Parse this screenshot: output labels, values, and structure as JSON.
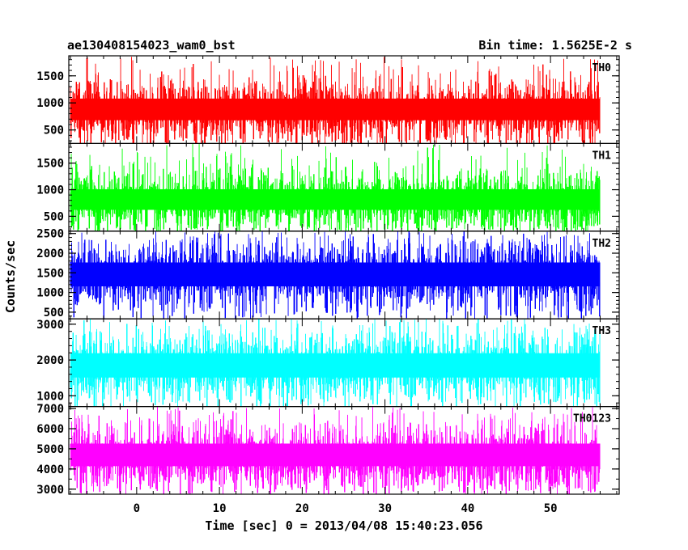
{
  "chart_data": {
    "type": "line",
    "title_left": "ae130408154023_wam0_bst",
    "title_right": "Bin time: 1.5625E-2 s",
    "xlabel": "Time [sec] 0 = 2013/04/08 15:40:23.056",
    "ylabel": "Counts/sec",
    "xlim": [
      -8.2,
      58.3
    ],
    "xticks": [
      0,
      10,
      20,
      30,
      40,
      50
    ],
    "x_minor_step": 2,
    "data_x_range": [
      -8.0,
      56.0
    ],
    "grid": false,
    "panels": [
      {
        "name": "TH0",
        "color": "#ff0000",
        "ylim": [
          250,
          1870
        ],
        "yticks": [
          500,
          1000,
          1500
        ],
        "y_minor_step": 100,
        "mean": 850,
        "typical_low": 380,
        "typical_high": 1380,
        "min": 200,
        "max": 1870
      },
      {
        "name": "TH1",
        "color": "#00ff00",
        "ylim": [
          220,
          1870
        ],
        "yticks": [
          500,
          1000,
          1500
        ],
        "y_minor_step": 100,
        "mean": 790,
        "typical_low": 330,
        "typical_high": 1300,
        "min": 200,
        "max": 1870
      },
      {
        "name": "TH2",
        "color": "#0000ff",
        "ylim": [
          330,
          2560
        ],
        "yticks": [
          500,
          1000,
          1500,
          2000,
          2500
        ],
        "y_minor_step": 100,
        "mean": 1450,
        "typical_low": 700,
        "typical_high": 2220,
        "min": 300,
        "max": 2560
      },
      {
        "name": "TH3",
        "color": "#00ffff",
        "ylim": [
          700,
          3150
        ],
        "yticks": [
          1000,
          2000,
          3000
        ],
        "y_minor_step": 200,
        "mean": 1800,
        "typical_low": 1000,
        "typical_high": 2700,
        "min": 700,
        "max": 3150
      },
      {
        "name": "TH0123",
        "color": "#ff00ff",
        "ylim": [
          2750,
          7100
        ],
        "yticks": [
          3000,
          4000,
          5000,
          6000,
          7000
        ],
        "y_minor_step": 500,
        "mean": 4550,
        "typical_low": 3300,
        "typical_high": 6100,
        "min": 2750,
        "max": 7100
      }
    ]
  }
}
